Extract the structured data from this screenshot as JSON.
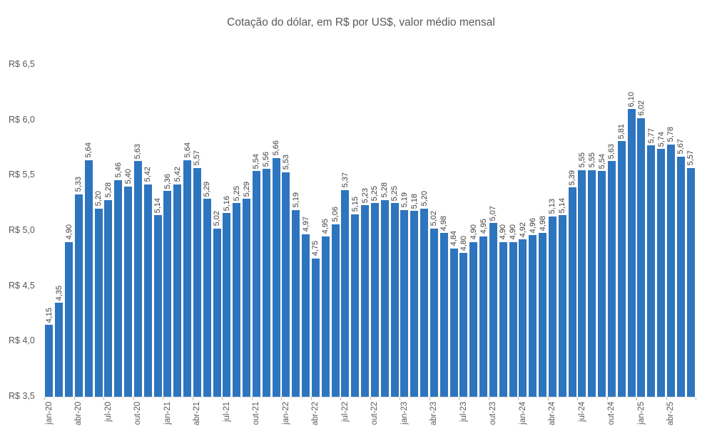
{
  "chart_data": {
    "type": "bar",
    "title": "Cotação do dólar, em R$ por US$, valor médio mensal",
    "categories": [
      "jan-20",
      "fev-20",
      "mar-20",
      "abr-20",
      "mai-20",
      "jun-20",
      "jul-20",
      "ago-20",
      "set-20",
      "out-20",
      "nov-20",
      "dez-20",
      "jan-21",
      "fev-21",
      "mar-21",
      "abr-21",
      "mai-21",
      "jun-21",
      "jul-21",
      "ago-21",
      "set-21",
      "out-21",
      "nov-21",
      "dez-21",
      "jan-22",
      "fev-22",
      "mar-22",
      "abr-22",
      "mai-22",
      "jun-22",
      "jul-22",
      "ago-22",
      "set-22",
      "out-22",
      "nov-22",
      "dez-22",
      "jan-23",
      "fev-23",
      "mar-23",
      "abr-23",
      "mai-23",
      "jun-23",
      "jul-23",
      "ago-23",
      "set-23",
      "out-23",
      "nov-23",
      "dez-23",
      "jan-24",
      "fev-24",
      "mar-24",
      "abr-24",
      "mai-24",
      "jun-24",
      "jul-24",
      "ago-24",
      "set-24",
      "out-24",
      "nov-24",
      "dez-24",
      "jan-25",
      "fev-25",
      "mar-25",
      "abr-25",
      "mai-25",
      "jun-25"
    ],
    "values": [
      4.15,
      4.35,
      4.9,
      5.33,
      5.64,
      5.2,
      5.28,
      5.46,
      5.4,
      5.63,
      5.42,
      5.14,
      5.36,
      5.42,
      5.64,
      5.57,
      5.29,
      5.02,
      5.16,
      5.25,
      5.29,
      5.54,
      5.56,
      5.66,
      5.53,
      5.19,
      4.97,
      4.75,
      4.95,
      5.06,
      5.37,
      5.15,
      5.23,
      5.25,
      5.28,
      5.25,
      5.19,
      5.18,
      5.2,
      5.02,
      4.98,
      4.84,
      4.8,
      4.9,
      4.95,
      5.07,
      4.9,
      4.9,
      4.92,
      4.96,
      4.98,
      5.13,
      5.14,
      5.39,
      5.55,
      5.55,
      5.54,
      5.63,
      5.81,
      6.1,
      6.02,
      5.77,
      5.74,
      5.78,
      5.67,
      5.57
    ],
    "x_tick_labels": [
      "jan-20",
      "abr-20",
      "jul-20",
      "out-20",
      "jan-21",
      "abr-21",
      "jul-21",
      "out-21",
      "jan-22",
      "abr-22",
      "jul-22",
      "out-22",
      "jan-23",
      "abr-23",
      "jul-23",
      "out-23",
      "jan-24",
      "abr-24",
      "jul-24",
      "out-24",
      "jan-25",
      "abr-25"
    ],
    "x_tick_every": 3,
    "y_tick_labels": [
      "R$ 6,5",
      "R$ 6,0",
      "R$ 5,5",
      "R$ 5,0",
      "R$ 4,5",
      "R$ 4,0",
      "R$ 3,5"
    ],
    "y_tick_values": [
      6.5,
      6.0,
      5.5,
      5.0,
      4.5,
      4.0,
      3.5
    ],
    "ylim": [
      3.5,
      6.5
    ],
    "decimal_separator": ",",
    "grid": "off",
    "legend": "none",
    "colors": {
      "bar": "#2E75BF",
      "title_text": "#595959",
      "value_label_text": "#404040",
      "axis_line": "#D9D9D9",
      "tick_mark": "#BFBFBF"
    }
  }
}
